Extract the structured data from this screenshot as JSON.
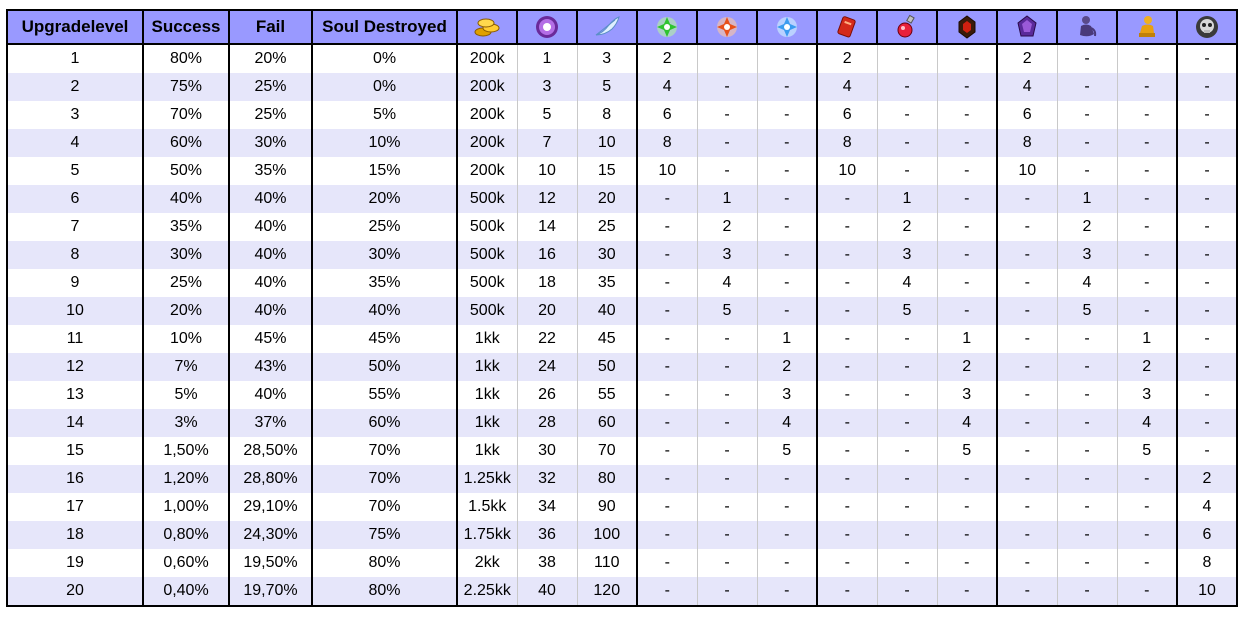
{
  "headers": {
    "level": "Upgradelevel",
    "success": "Success",
    "fail": "Fail",
    "soul": "Soul Destroyed"
  },
  "icons": [
    "gold-coins-icon",
    "purple-orb-icon",
    "white-feather-icon",
    "green-crystal-icon",
    "red-crystal-icon",
    "blue-crystal-icon",
    "red-scroll-icon",
    "red-potion-icon",
    "red-gem-icon",
    "purple-gem-icon",
    "purple-figure-icon",
    "gold-figure-icon",
    "silver-skull-icon"
  ],
  "colors": {
    "header_bg": "#9999ff",
    "row_alt_bg": "#e6e6fa"
  },
  "rows": [
    [
      "1",
      "80%",
      "20%",
      "0%",
      "200k",
      "1",
      "3",
      "2",
      "-",
      "-",
      "2",
      "-",
      "-",
      "2",
      "-",
      "-",
      "-"
    ],
    [
      "2",
      "75%",
      "25%",
      "0%",
      "200k",
      "3",
      "5",
      "4",
      "-",
      "-",
      "4",
      "-",
      "-",
      "4",
      "-",
      "-",
      "-"
    ],
    [
      "3",
      "70%",
      "25%",
      "5%",
      "200k",
      "5",
      "8",
      "6",
      "-",
      "-",
      "6",
      "-",
      "-",
      "6",
      "-",
      "-",
      "-"
    ],
    [
      "4",
      "60%",
      "30%",
      "10%",
      "200k",
      "7",
      "10",
      "8",
      "-",
      "-",
      "8",
      "-",
      "-",
      "8",
      "-",
      "-",
      "-"
    ],
    [
      "5",
      "50%",
      "35%",
      "15%",
      "200k",
      "10",
      "15",
      "10",
      "-",
      "-",
      "10",
      "-",
      "-",
      "10",
      "-",
      "-",
      "-"
    ],
    [
      "6",
      "40%",
      "40%",
      "20%",
      "500k",
      "12",
      "20",
      "-",
      "1",
      "-",
      "-",
      "1",
      "-",
      "-",
      "1",
      "-",
      "-"
    ],
    [
      "7",
      "35%",
      "40%",
      "25%",
      "500k",
      "14",
      "25",
      "-",
      "2",
      "-",
      "-",
      "2",
      "-",
      "-",
      "2",
      "-",
      "-"
    ],
    [
      "8",
      "30%",
      "40%",
      "30%",
      "500k",
      "16",
      "30",
      "-",
      "3",
      "-",
      "-",
      "3",
      "-",
      "-",
      "3",
      "-",
      "-"
    ],
    [
      "9",
      "25%",
      "40%",
      "35%",
      "500k",
      "18",
      "35",
      "-",
      "4",
      "-",
      "-",
      "4",
      "-",
      "-",
      "4",
      "-",
      "-"
    ],
    [
      "10",
      "20%",
      "40%",
      "40%",
      "500k",
      "20",
      "40",
      "-",
      "5",
      "-",
      "-",
      "5",
      "-",
      "-",
      "5",
      "-",
      "-"
    ],
    [
      "11",
      "10%",
      "45%",
      "45%",
      "1kk",
      "22",
      "45",
      "-",
      "-",
      "1",
      "-",
      "-",
      "1",
      "-",
      "-",
      "1",
      "-"
    ],
    [
      "12",
      "7%",
      "43%",
      "50%",
      "1kk",
      "24",
      "50",
      "-",
      "-",
      "2",
      "-",
      "-",
      "2",
      "-",
      "-",
      "2",
      "-"
    ],
    [
      "13",
      "5%",
      "40%",
      "55%",
      "1kk",
      "26",
      "55",
      "-",
      "-",
      "3",
      "-",
      "-",
      "3",
      "-",
      "-",
      "3",
      "-"
    ],
    [
      "14",
      "3%",
      "37%",
      "60%",
      "1kk",
      "28",
      "60",
      "-",
      "-",
      "4",
      "-",
      "-",
      "4",
      "-",
      "-",
      "4",
      "-"
    ],
    [
      "15",
      "1,50%",
      "28,50%",
      "70%",
      "1kk",
      "30",
      "70",
      "-",
      "-",
      "5",
      "-",
      "-",
      "5",
      "-",
      "-",
      "5",
      "-"
    ],
    [
      "16",
      "1,20%",
      "28,80%",
      "70%",
      "1.25kk",
      "32",
      "80",
      "-",
      "-",
      "-",
      "-",
      "-",
      "-",
      "-",
      "-",
      "-",
      "2"
    ],
    [
      "17",
      "1,00%",
      "29,10%",
      "70%",
      "1.5kk",
      "34",
      "90",
      "-",
      "-",
      "-",
      "-",
      "-",
      "-",
      "-",
      "-",
      "-",
      "4"
    ],
    [
      "18",
      "0,80%",
      "24,30%",
      "75%",
      "1.75kk",
      "36",
      "100",
      "-",
      "-",
      "-",
      "-",
      "-",
      "-",
      "-",
      "-",
      "-",
      "6"
    ],
    [
      "19",
      "0,60%",
      "19,50%",
      "80%",
      "2kk",
      "38",
      "110",
      "-",
      "-",
      "-",
      "-",
      "-",
      "-",
      "-",
      "-",
      "-",
      "8"
    ],
    [
      "20",
      "0,40%",
      "19,70%",
      "80%",
      "2.25kk",
      "40",
      "120",
      "-",
      "-",
      "-",
      "-",
      "-",
      "-",
      "-",
      "-",
      "-",
      "10"
    ]
  ]
}
